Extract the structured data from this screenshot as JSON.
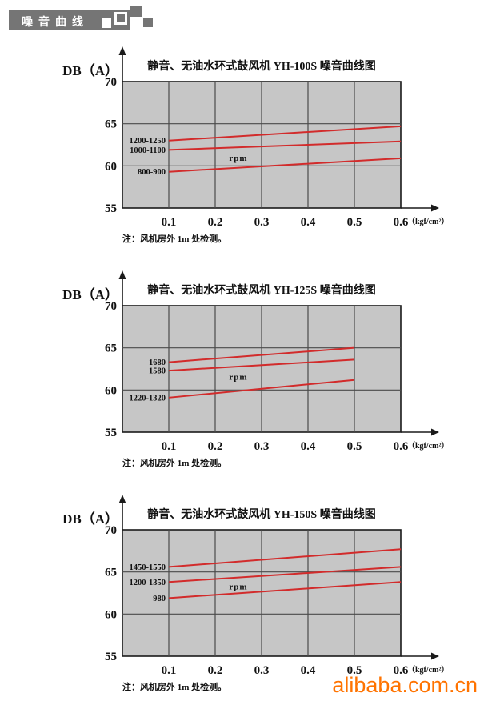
{
  "page": {
    "header": {
      "title": "噪音曲线"
    },
    "watermark": "alibaba.com.cn",
    "colors": {
      "banner_gray": "#757575",
      "plot_bg": "#c6c6c6",
      "grid_line": "#4a4a4a",
      "axis_black": "#1a1a1a",
      "series_red": "#d22b2b",
      "watermark_orange": "#ff7300"
    }
  },
  "chart_data": [
    {
      "type": "line",
      "title": "静音、无油水环式鼓风机 YH-100S 噪音曲线图",
      "ylabel": "DB（A）",
      "xunit": "（kgf/cm²）",
      "note": "注：风机房外 1m 处检测。",
      "center_label": "rpm",
      "center_label_pos": {
        "x": 0.25,
        "y": 61.0
      },
      "ylim": [
        55,
        70
      ],
      "xlim": [
        0,
        0.6
      ],
      "yticks": [
        70,
        65,
        60,
        55
      ],
      "xticks": [
        "0.1",
        "0.2",
        "0.3",
        "0.4",
        "0.5",
        "0.6"
      ],
      "xtick_values": [
        0.1,
        0.2,
        0.3,
        0.4,
        0.5,
        0.6
      ],
      "grid": true,
      "series": [
        {
          "name": "1200-1250",
          "points": [
            [
              0.1,
              63.0
            ],
            [
              0.6,
              64.7
            ]
          ]
        },
        {
          "name": "1000-1100",
          "points": [
            [
              0.1,
              61.9
            ],
            [
              0.6,
              62.9
            ]
          ]
        },
        {
          "name": "800-900",
          "points": [
            [
              0.1,
              59.3
            ],
            [
              0.6,
              60.9
            ]
          ]
        }
      ]
    },
    {
      "type": "line",
      "title": "静音、无油水环式鼓风机 YH-125S 噪音曲线图",
      "ylabel": "DB（A）",
      "xunit": "（kgf/cm²）",
      "note": "注：风机房外 1m 处检测。",
      "center_label": "rpm",
      "center_label_pos": {
        "x": 0.25,
        "y": 61.6
      },
      "ylim": [
        55,
        70
      ],
      "xlim": [
        0,
        0.6
      ],
      "yticks": [
        70,
        65,
        60,
        55
      ],
      "xticks": [
        "0.1",
        "0.2",
        "0.3",
        "0.4",
        "0.5",
        "0.6"
      ],
      "xtick_values": [
        0.1,
        0.2,
        0.3,
        0.4,
        0.5,
        0.6
      ],
      "grid": true,
      "series": [
        {
          "name": "1680",
          "points": [
            [
              0.1,
              63.3
            ],
            [
              0.5,
              65.0
            ]
          ]
        },
        {
          "name": "1580",
          "points": [
            [
              0.1,
              62.3
            ],
            [
              0.5,
              63.6
            ]
          ]
        },
        {
          "name": "1220-1320",
          "points": [
            [
              0.1,
              59.1
            ],
            [
              0.5,
              61.2
            ]
          ]
        }
      ]
    },
    {
      "type": "line",
      "title": "静音、无油水环式鼓风机 YH-150S 噪音曲线图",
      "ylabel": "DB（A）",
      "xunit": "（kgf/cm²）",
      "note": "注：风机房外 1m 处检测。",
      "center_label": "rpm",
      "center_label_pos": {
        "x": 0.25,
        "y": 63.3
      },
      "ylim": [
        55,
        70
      ],
      "xlim": [
        0,
        0.6
      ],
      "yticks": [
        70,
        65,
        60,
        55
      ],
      "xticks": [
        "0.1",
        "0.2",
        "0.3",
        "0.4",
        "0.5",
        "0.6"
      ],
      "xtick_values": [
        0.1,
        0.2,
        0.3,
        0.4,
        0.5,
        0.6
      ],
      "grid": true,
      "series": [
        {
          "name": "1450-1550",
          "points": [
            [
              0.1,
              65.6
            ],
            [
              0.6,
              67.7
            ]
          ]
        },
        {
          "name": "1200-1350",
          "points": [
            [
              0.1,
              63.8
            ],
            [
              0.6,
              65.6
            ]
          ]
        },
        {
          "name": "980",
          "points": [
            [
              0.1,
              61.9
            ],
            [
              0.6,
              63.8
            ]
          ]
        }
      ]
    }
  ]
}
